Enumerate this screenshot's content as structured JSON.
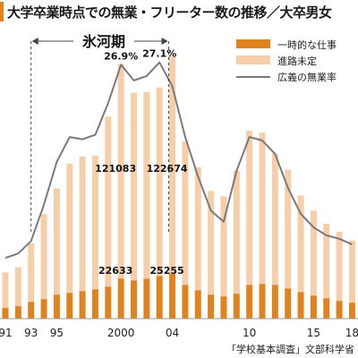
{
  "title": "大学卒業時点での無業・フリーター数の推移／大卒男女",
  "source": "「学校基本調査」文部科学省",
  "colors": {
    "temp_job": "#e0821e",
    "not_decided": "#f6cfaa",
    "rate_line": "#7a7a7a",
    "title_accent": "#e0821e"
  },
  "chart_data": {
    "type": "bar",
    "stacked": true,
    "x": [
      1991,
      1992,
      1993,
      1994,
      1995,
      1996,
      1997,
      1998,
      1999,
      2000,
      2001,
      2002,
      2003,
      2004,
      2005,
      2006,
      2007,
      2008,
      2009,
      2010,
      2011,
      2012,
      2013,
      2014,
      2015,
      2016,
      2017,
      2018
    ],
    "xtick_labels": [
      "91",
      "93",
      "95",
      "2000",
      "04",
      "10",
      "15",
      "18"
    ],
    "xtick_values": [
      1991,
      1993,
      1995,
      2000,
      2004,
      2010,
      2015,
      2018
    ],
    "series": [
      {
        "name": "一時的な仕事",
        "values": [
          6000,
          7000,
          9500,
          11000,
          13500,
          14500,
          15500,
          16500,
          18000,
          22633,
          21500,
          22500,
          24000,
          25255,
          19000,
          16000,
          13500,
          12500,
          14000,
          19000,
          19500,
          19000,
          17000,
          15000,
          13000,
          11500,
          10000,
          9000
        ]
      },
      {
        "name": "進路未定",
        "values": [
          20000,
          22000,
          33000,
          48000,
          60000,
          73000,
          76000,
          75500,
          96000,
          121083,
          106000,
          105500,
          106500,
          122674,
          81000,
          69500,
          58500,
          56500,
          69500,
          87000,
          85500,
          74000,
          67000,
          54500,
          48000,
          42000,
          39000,
          35000
        ]
      }
    ],
    "line": {
      "name": "広義の無業率",
      "values": [
        9.8,
        10.2,
        11.3,
        14.5,
        18.3,
        20.5,
        20.3,
        20.7,
        23.5,
        26.9,
        25.5,
        25.9,
        27.1,
        25.0,
        20.5,
        17.0,
        14.0,
        13.0,
        17.5,
        20.5,
        20.2,
        19.0,
        16.0,
        13.7,
        12.5,
        11.8,
        11.5,
        11.0
      ]
    },
    "annotations": {
      "ice_age_label": "氷河期",
      "ice_age_range": [
        1993,
        2004
      ],
      "labels": [
        {
          "text": "26.9%",
          "x": 2000,
          "kind": "line",
          "value": 26.9
        },
        {
          "text": "27.1%",
          "x": 2003,
          "kind": "line",
          "value": 27.1
        },
        {
          "text": "121083",
          "x": 2000,
          "kind": "bar",
          "value": 121083
        },
        {
          "text": "122674",
          "x": 2004,
          "kind": "bar",
          "value": 122674
        },
        {
          "text": "22633",
          "x": 2000,
          "kind": "temp",
          "value": 22633
        },
        {
          "text": "25255",
          "x": 2004,
          "kind": "temp",
          "value": 25255
        }
      ]
    },
    "legend_position": "top-right",
    "grid": false
  }
}
